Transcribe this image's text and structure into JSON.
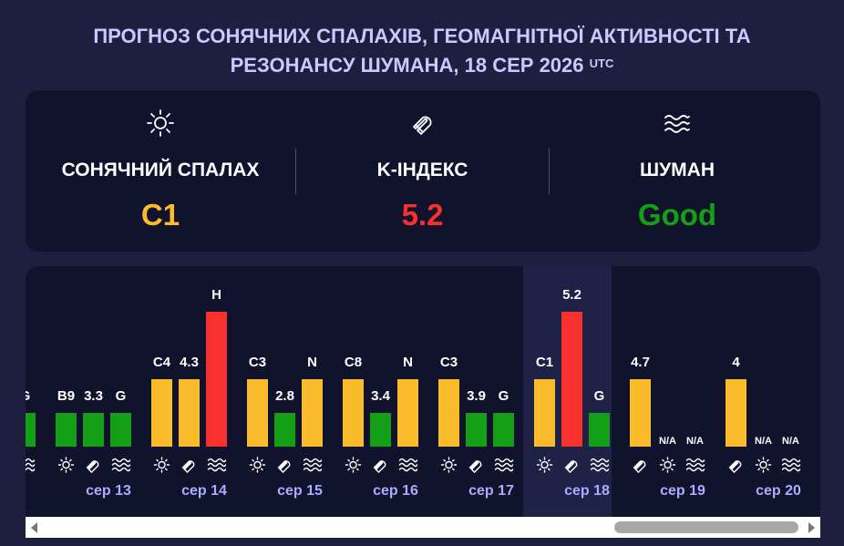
{
  "title": {
    "line1": "ПРОГНОЗ СОНЯЧНИХ СПАЛАХІВ, ГЕОМАГНІТНОЇ АКТИВНОСТІ ТА",
    "line2": "РЕЗОНАНСУ ШУМАНА, 18 СЕР 2026",
    "suffix": "UTC"
  },
  "summary": {
    "flare": {
      "icon": "sun-icon",
      "label": "СОНЯЧНИЙ СПАЛАХ",
      "value": "C1",
      "color": "#fbbc2c"
    },
    "kindex": {
      "icon": "magnet-icon",
      "label": "K-ІНДЕКС",
      "value": "5.2",
      "color": "#f8312f"
    },
    "schumann": {
      "icon": "waves-icon",
      "label": "ШУМАН",
      "value": "Good",
      "color": "#13a016"
    }
  },
  "chart_data": {
    "type": "bar",
    "levels": {
      "N/A": 0,
      "G": 1,
      "N": 2,
      "H": 4
    },
    "colors": {
      "green": "#13a016",
      "orange": "#fbbc2c",
      "red": "#f8312f"
    },
    "highlighted_day": "сер 18",
    "days": [
      {
        "date": "",
        "bars": [
          {
            "type": "waves",
            "label": "G",
            "level": 1,
            "color": "green"
          }
        ]
      },
      {
        "date": "сер 13",
        "bars": [
          {
            "type": "sun",
            "label": "B9",
            "level": 1,
            "color": "green"
          },
          {
            "type": "magnet",
            "label": "3.3",
            "level": 1,
            "color": "green"
          },
          {
            "type": "waves",
            "label": "G",
            "level": 1,
            "color": "green"
          }
        ]
      },
      {
        "date": "сер 14",
        "bars": [
          {
            "type": "sun",
            "label": "C4",
            "level": 2,
            "color": "orange"
          },
          {
            "type": "magnet",
            "label": "4.3",
            "level": 2,
            "color": "orange"
          },
          {
            "type": "waves",
            "label": "H",
            "level": 4,
            "color": "red"
          }
        ]
      },
      {
        "date": "сер 15",
        "bars": [
          {
            "type": "sun",
            "label": "C3",
            "level": 2,
            "color": "orange"
          },
          {
            "type": "magnet",
            "label": "2.8",
            "level": 1,
            "color": "green"
          },
          {
            "type": "waves",
            "label": "N",
            "level": 2,
            "color": "orange"
          }
        ]
      },
      {
        "date": "сер 16",
        "bars": [
          {
            "type": "sun",
            "label": "C8",
            "level": 2,
            "color": "orange"
          },
          {
            "type": "magnet",
            "label": "3.4",
            "level": 1,
            "color": "green"
          },
          {
            "type": "waves",
            "label": "N",
            "level": 2,
            "color": "orange"
          }
        ]
      },
      {
        "date": "сер 17",
        "bars": [
          {
            "type": "sun",
            "label": "C3",
            "level": 2,
            "color": "orange"
          },
          {
            "type": "magnet",
            "label": "3.9",
            "level": 1,
            "color": "green"
          },
          {
            "type": "waves",
            "label": "G",
            "level": 1,
            "color": "green"
          }
        ]
      },
      {
        "date": "сер 18",
        "bars": [
          {
            "type": "sun",
            "label": "C1",
            "level": 2,
            "color": "orange"
          },
          {
            "type": "magnet",
            "label": "5.2",
            "level": 4,
            "color": "red"
          },
          {
            "type": "waves",
            "label": "G",
            "level": 1,
            "color": "green"
          }
        ]
      },
      {
        "date": "сер 19",
        "bars": [
          {
            "type": "magnet",
            "label": "4.7",
            "level": 2,
            "color": "orange"
          },
          {
            "type": "sun",
            "label": "N/A",
            "level": 0,
            "color": ""
          },
          {
            "type": "waves",
            "label": "N/A",
            "level": 0,
            "color": ""
          }
        ]
      },
      {
        "date": "сер 20",
        "bars": [
          {
            "type": "magnet",
            "label": "4",
            "level": 2,
            "color": "orange"
          },
          {
            "type": "sun",
            "label": "N/A",
            "level": 0,
            "color": ""
          },
          {
            "type": "waves",
            "label": "N/A",
            "level": 0,
            "color": ""
          }
        ]
      }
    ]
  },
  "scrollbar": {
    "left_arrow": "scroll-left",
    "right_arrow": "scroll-right"
  }
}
